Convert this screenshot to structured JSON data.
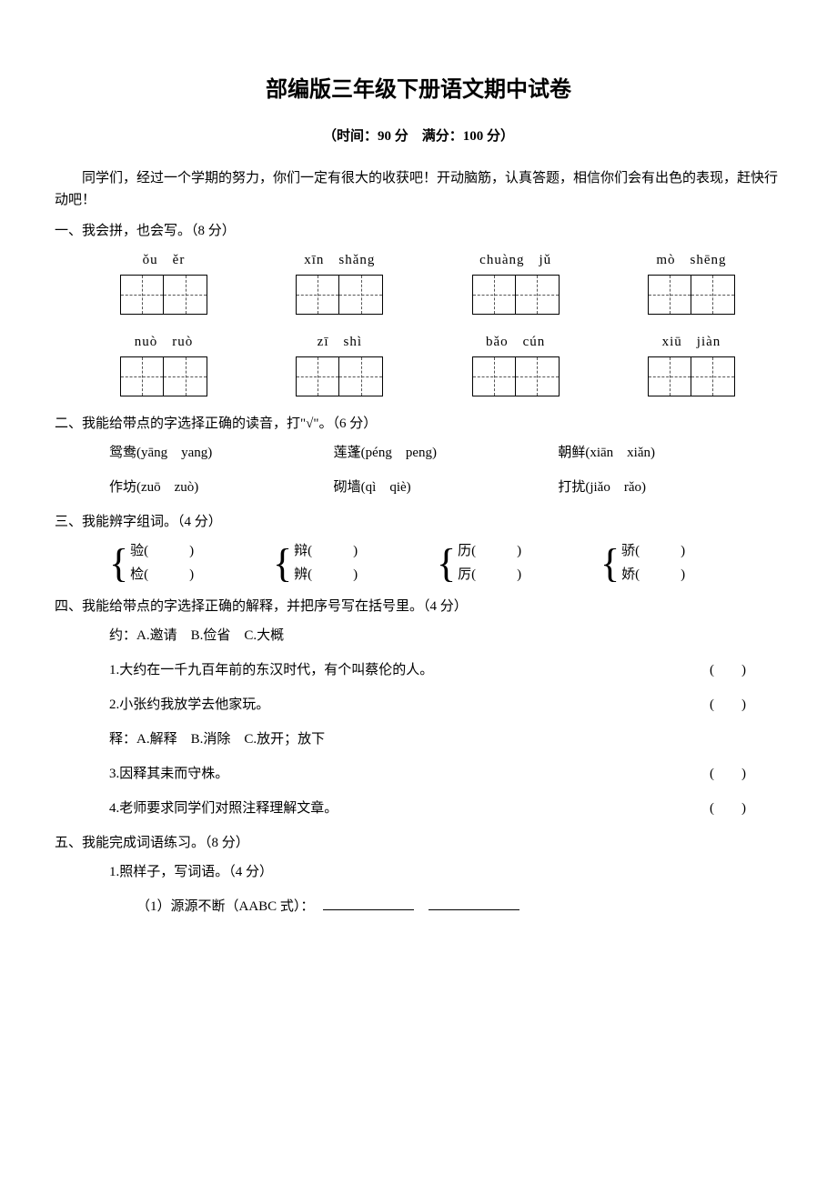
{
  "title": "部编版三年级下册语文期中试卷",
  "subtitle": "（时间：90 分　满分：100 分）",
  "intro": "同学们，经过一个学期的努力，你们一定有很大的收获吧！开动脑筋，认真答题，相信你们会有出色的表现，赶快行动吧！",
  "q1": {
    "head": "一、我会拼，也会写。（8 分）",
    "row1": [
      "ǒu　ěr",
      "xīn　shǎng",
      "chuàng　jǔ",
      "mò　shēng"
    ],
    "row2": [
      "nuò　ruò",
      "zī　shì",
      "bǎo　cún",
      "xiū　jiàn"
    ]
  },
  "q2": {
    "head": "二、我能给带点的字选择正确的读音，打\"√\"。（6 分）",
    "rows": [
      [
        "鸳鸯(yāng　yang)",
        "莲蓬(péng　peng)",
        "朝鲜(xiān　xiǎn)"
      ],
      [
        "作坊(zuō　zuò)",
        "砌墙(qì　qiè)",
        "打扰(jiǎo　rǎo)"
      ]
    ]
  },
  "q3": {
    "head": "三、我能辨字组词。（4 分）",
    "groups": [
      {
        "a": "验(　　　)",
        "b": "检(　　　)"
      },
      {
        "a": "辩(　　　)",
        "b": "辨(　　　)"
      },
      {
        "a": "历(　　　)",
        "b": "厉(　　　)"
      },
      {
        "a": "骄(　　　)",
        "b": "娇(　　　)"
      }
    ]
  },
  "q4": {
    "head": "四、我能给带点的字选择正确的解释，并把序号写在括号里。（4 分）",
    "def1": "约：A.邀请　B.俭省　C.大概",
    "items1": [
      "1.大约在一千九百年前的东汉时代，有个叫蔡伦的人。",
      "2.小张约我放学去他家玩。"
    ],
    "def2": "释：A.解释　B.消除　C.放开；放下",
    "items2": [
      "3.因释其耒而守株。",
      "4.老师要求同学们对照注释理解文章。"
    ],
    "paren": "(　　)"
  },
  "q5": {
    "head": "五、我能完成词语练习。（8 分）",
    "sub1": "1.照样子，写词语。（4 分）",
    "sub1_1": "（1）源源不断（AABC 式）："
  }
}
